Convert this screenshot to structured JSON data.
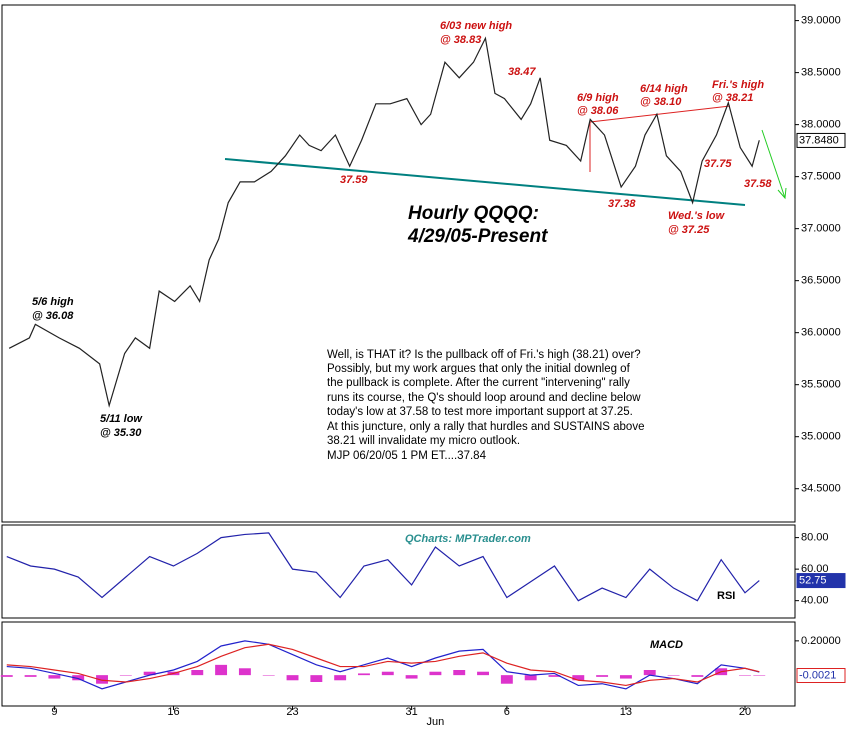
{
  "chart_data": [
    {
      "type": "line",
      "title": "Hourly QQQQ:",
      "subtitle": "4/29/05-Present",
      "x": [
        4.1,
        4.95,
        5.2,
        6.2,
        7.05,
        7.9,
        8.3,
        8.95,
        9.4,
        10,
        10.4,
        11.05,
        11.7,
        12.1,
        12.5,
        12.9,
        13.3,
        13.8,
        14.4,
        15.1,
        15.7,
        16.3,
        16.7,
        17.2,
        17.8,
        18.4,
        18.9,
        19.5,
        20.1,
        20.8,
        21.4,
        21.8,
        22.4,
        23,
        23.6,
        24.1,
        24.5,
        24.9,
        25.6,
        26,
        26.4,
        26.8,
        27.5,
        28.1,
        28.5,
        29.1,
        29.8,
        30.4,
        30.8,
        31.3,
        31.7,
        32.3,
        32.8,
        33.2,
        33.8,
        34.3,
        34.8,
        35.3,
        35.6
      ],
      "series": [
        {
          "color": "#222222",
          "values": [
            35.85,
            35.95,
            36.08,
            35.95,
            35.85,
            35.7,
            35.3,
            35.8,
            35.95,
            35.85,
            36.4,
            36.3,
            36.45,
            36.3,
            36.7,
            36.9,
            37.25,
            37.45,
            37.45,
            37.55,
            37.7,
            37.9,
            37.8,
            37.75,
            37.9,
            37.6,
            37.85,
            38.2,
            38.2,
            38.25,
            38.0,
            38.1,
            38.6,
            38.45,
            38.6,
            38.83,
            38.3,
            38.25,
            38.05,
            38.2,
            38.45,
            37.85,
            37.8,
            37.65,
            38.05,
            37.9,
            37.4,
            37.6,
            37.9,
            38.1,
            37.7,
            37.55,
            37.25,
            37.65,
            37.9,
            38.21,
            37.78,
            37.6,
            37.85
          ]
        }
      ],
      "xlim": [
        3.8,
        37.1
      ],
      "xticks": [
        {
          "value": 6,
          "label": "9"
        },
        {
          "value": 11,
          "label": "16"
        },
        {
          "value": 16,
          "label": "23"
        },
        {
          "value": 21,
          "label": "31"
        },
        {
          "value": 25,
          "label": "6"
        },
        {
          "value": 30,
          "label": "13"
        },
        {
          "value": 35,
          "label": "20"
        }
      ],
      "month_labels": [
        {
          "value": 22,
          "label": "Jun"
        }
      ],
      "ylim": [
        34.18,
        39.15
      ],
      "yticks": [
        {
          "value": 34.5,
          "label": "34.5000"
        },
        {
          "value": 35,
          "label": "35.0000"
        },
        {
          "value": 35.5,
          "label": "35.5000"
        },
        {
          "value": 36,
          "label": "36.0000"
        },
        {
          "value": 36.5,
          "label": "36.5000"
        },
        {
          "value": 37,
          "label": "37.0000"
        },
        {
          "value": 37.5,
          "label": "37.5000"
        },
        {
          "value": 38,
          "label": "38.0000"
        },
        {
          "value": 38.5,
          "label": "38.5000"
        },
        {
          "value": 39,
          "label": "39.0000"
        }
      ],
      "current": {
        "value": 37.848,
        "label": "37.8480"
      },
      "annotations": [
        "6/03 new high",
        "@ 38.83",
        "38.47",
        "6/9 high",
        "@ 38.06",
        "6/14 high",
        "@ 38.10",
        "Fri.'s high",
        "@ 38.21",
        "37.75",
        "37.58",
        "37.59",
        "37.38",
        "Wed.'s low",
        "@ 37.25",
        "5/6 high",
        "@ 36.08",
        "5/11 low",
        "@ 35.30"
      ],
      "note": [
        "Well, is THAT it? Is the pullback off of Fri.'s high (38.21) over?",
        "Possibly, but my work argues that only the initial downleg of",
        "the pullback is complete. After the current \"intervening\" rally",
        "runs its course, the Q's should loop around and decline below",
        "today's low at 37.58 to test more important support at 37.25.",
        "At this juncture, only a rally that hurdles and SUSTAINS above",
        "38.21 will invalidate my micro outlook.",
        "MJP 06/20/05 1 PM ET....37.84"
      ]
    },
    {
      "type": "line",
      "source": "QCharts: MPTrader.com",
      "label": "RSI",
      "x": [
        4,
        5,
        6,
        7,
        8,
        9,
        10,
        11,
        12,
        13,
        14,
        15,
        16,
        17,
        18,
        19,
        20,
        21,
        22,
        23,
        24,
        25,
        26,
        27,
        28,
        29,
        30,
        31,
        32,
        33,
        34,
        35,
        35.6
      ],
      "series": [
        {
          "color": "#2222aa",
          "values": [
            68,
            62,
            60,
            55,
            42,
            55,
            68,
            62,
            70,
            80,
            82,
            83,
            60,
            58,
            42,
            62,
            66,
            50,
            74,
            62,
            68,
            42,
            52,
            62,
            40,
            48,
            42,
            60,
            48,
            40,
            66,
            45,
            52.75
          ]
        }
      ],
      "xlim": [
        3.8,
        37.1
      ],
      "ylim": [
        29,
        88
      ],
      "yticks": [
        {
          "value": 40,
          "label": "40.00"
        },
        {
          "value": 60,
          "label": "60.00"
        },
        {
          "value": 80,
          "label": "80.00"
        }
      ],
      "current": {
        "value": 52.75,
        "label": "52.75"
      }
    },
    {
      "type": "line",
      "label": "MACD",
      "x": [
        4,
        5,
        6,
        7,
        8,
        9,
        10,
        11,
        12,
        13,
        14,
        15,
        16,
        17,
        18,
        19,
        20,
        21,
        22,
        23,
        24,
        25,
        26,
        27,
        28,
        29,
        30,
        31,
        32,
        33,
        34,
        35,
        35.6
      ],
      "series": [
        {
          "color": "#2222cc",
          "values": [
            0.05,
            0.04,
            0.01,
            -0.02,
            -0.08,
            -0.04,
            0.0,
            0.03,
            0.08,
            0.17,
            0.2,
            0.18,
            0.12,
            0.06,
            0.02,
            0.06,
            0.1,
            0.05,
            0.1,
            0.14,
            0.15,
            0.02,
            0.0,
            0.01,
            -0.06,
            -0.05,
            -0.08,
            0.0,
            -0.02,
            -0.05,
            0.06,
            0.04,
            0.018
          ]
        },
        {
          "color": "#dd2222",
          "values": [
            0.06,
            0.05,
            0.03,
            0.01,
            -0.03,
            -0.04,
            -0.02,
            0.01,
            0.05,
            0.11,
            0.16,
            0.18,
            0.15,
            0.1,
            0.05,
            0.05,
            0.08,
            0.07,
            0.08,
            0.11,
            0.13,
            0.07,
            0.03,
            0.02,
            -0.03,
            -0.04,
            -0.06,
            -0.03,
            -0.02,
            -0.04,
            0.02,
            0.04,
            0.02
          ]
        }
      ],
      "histogram": {
        "color": "#dd33cc",
        "values": [
          -0.01,
          -0.01,
          -0.02,
          -0.03,
          -0.05,
          0,
          0.02,
          0.02,
          0.03,
          0.06,
          0.04,
          0,
          -0.03,
          -0.04,
          -0.03,
          0.01,
          0.02,
          -0.02,
          0.02,
          0.03,
          0.02,
          -0.05,
          -0.03,
          -0.01,
          -0.03,
          -0.01,
          -0.02,
          0.03,
          0,
          -0.01,
          0.04,
          0,
          -0.0021
        ]
      },
      "xlim": [
        3.8,
        37.1
      ],
      "ylim": [
        -0.18,
        0.31
      ],
      "yticks": [
        {
          "value": 0.2,
          "label": "0.20000"
        }
      ],
      "current": {
        "value": -0.0021,
        "label": "-0.0021"
      }
    }
  ]
}
